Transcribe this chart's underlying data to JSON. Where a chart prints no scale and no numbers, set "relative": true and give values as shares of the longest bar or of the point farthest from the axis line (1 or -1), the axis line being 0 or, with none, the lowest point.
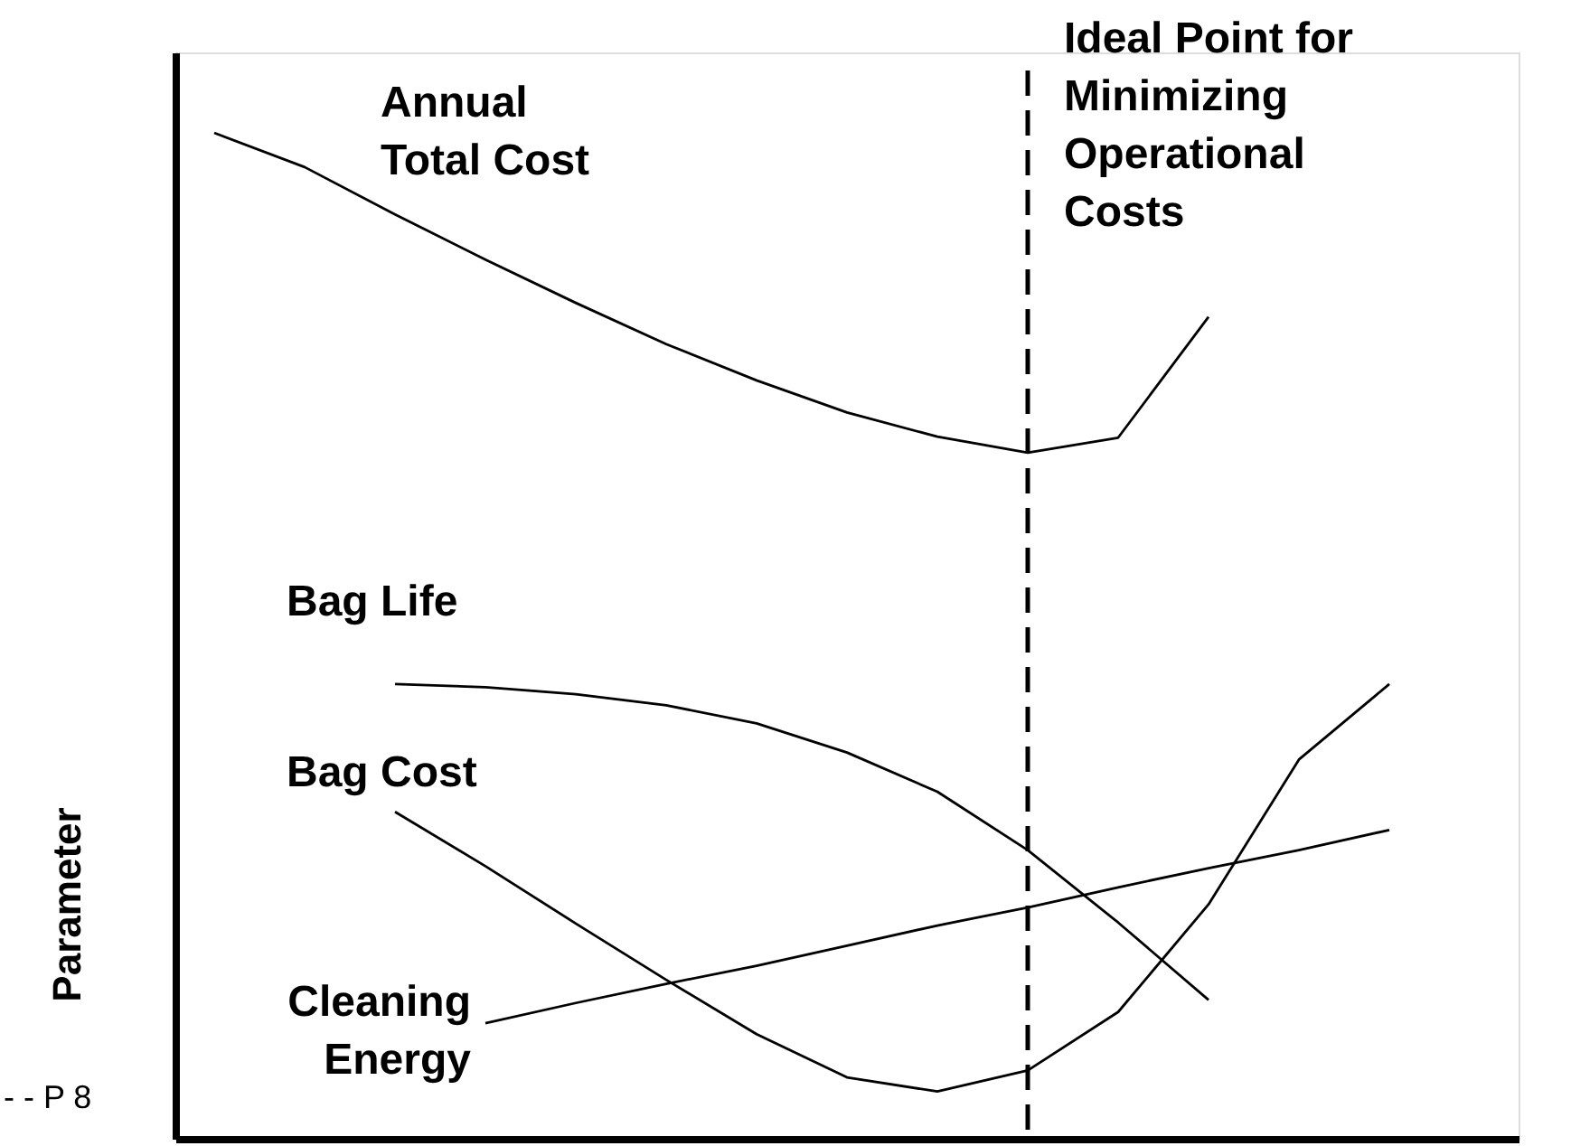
{
  "chart_data": {
    "type": "line",
    "relative": true,
    "ylabel": "Parameter",
    "grid": false,
    "marker": "none",
    "line_style": "solid",
    "categories": [
      null,
      null,
      null,
      null,
      null,
      null,
      null,
      null,
      null,
      null,
      null,
      null,
      null,
      null,
      null
    ],
    "series": [
      {
        "name": "Annual\nTotal Cost",
        "color": "#000000",
        "values": [
          1,
          0.966,
          0.919,
          0.874,
          0.831,
          0.79,
          0.754,
          0.722,
          0.698,
          0.682,
          0.697,
          0.817,
          null,
          null,
          null
        ]
      },
      {
        "name": "Bag Life",
        "color": "#000000",
        "values": [
          null,
          null,
          0.452,
          0.449,
          0.442,
          0.431,
          0.413,
          0.384,
          0.345,
          0.287,
          0.215,
          0.138,
          null,
          null,
          null
        ]
      },
      {
        "name": "Bag Cost",
        "color": "#000000",
        "values": [
          null,
          null,
          0.325,
          0.271,
          0.214,
          0.158,
          0.104,
          0.061,
          0.047,
          0.068,
          0.126,
          0.233,
          0.377,
          0.452,
          null
        ]
      },
      {
        "name": "Cleaning\nEnergy",
        "color": "#000000",
        "values": [
          null,
          null,
          null,
          0.115,
          0.135,
          0.154,
          0.172,
          0.192,
          0.212,
          0.23,
          0.25,
          0.269,
          0.287,
          0.307,
          null
        ]
      }
    ],
    "ref_lines": [
      {
        "axis": "x",
        "label": "Ideal Point for\nMinimizing\nOperational\nCosts",
        "color": "#000000",
        "line_style": "dashed"
      }
    ],
    "annotations": [
      "- - P 8"
    ]
  }
}
